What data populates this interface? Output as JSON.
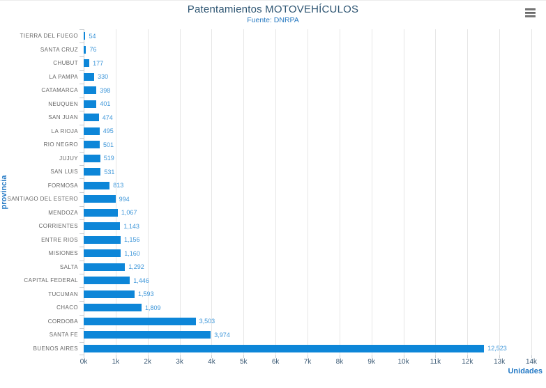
{
  "menu": {
    "icon": "hamburger-icon"
  },
  "chart_data": {
    "type": "bar",
    "orientation": "horizontal",
    "title": "Patentamientos MOTOVEHÍCULOS",
    "subtitle": "Fuente: DNRPA",
    "xlabel": "Unidades",
    "ylabel": "provincia",
    "categories": [
      "TIERRA DEL FUEGO",
      "SANTA CRUZ",
      "CHUBUT",
      "LA PAMPA",
      "CATAMARCA",
      "NEUQUEN",
      "SAN JUAN",
      "LA RIOJA",
      "RIO NEGRO",
      "JUJUY",
      "SAN LUIS",
      "FORMOSA",
      "SANTIAGO DEL ESTERO",
      "MENDOZA",
      "CORRIENTES",
      "ENTRE RIOS",
      "MISIONES",
      "SALTA",
      "CAPITAL FEDERAL",
      "TUCUMAN",
      "CHACO",
      "CORDOBA",
      "SANTA FE",
      "BUENOS AIRES"
    ],
    "values": [
      54,
      76,
      177,
      330,
      398,
      401,
      474,
      495,
      501,
      519,
      531,
      813,
      994,
      1067,
      1143,
      1156,
      1160,
      1292,
      1446,
      1593,
      1809,
      3503,
      3974,
      12523
    ],
    "value_labels": [
      "54",
      "76",
      "177",
      "330",
      "398",
      "401",
      "474",
      "495",
      "501",
      "519",
      "531",
      "813",
      "994",
      "1,067",
      "1,143",
      "1,156",
      "1,160",
      "1,292",
      "1,446",
      "1,593",
      "1,809",
      "3,503",
      "3,974",
      "12,523"
    ],
    "xlim": [
      0,
      14000
    ],
    "x_ticks": [
      "0k",
      "1k",
      "2k",
      "3k",
      "4k",
      "5k",
      "6k",
      "7k",
      "8k",
      "9k",
      "10k",
      "11k",
      "12k",
      "13k",
      "14k"
    ],
    "grid": true,
    "legend": false,
    "colors": {
      "bar": "#0d86d8",
      "value_label": "#3d96d9",
      "category_label": "#666666",
      "tick_label": "#3c5a75",
      "title": "#2e5572",
      "subtitle": "#2779c1",
      "axis_title": "#2077c4",
      "grid_line": "#e6e6e6",
      "axis_line": "#c7ccd1"
    }
  }
}
